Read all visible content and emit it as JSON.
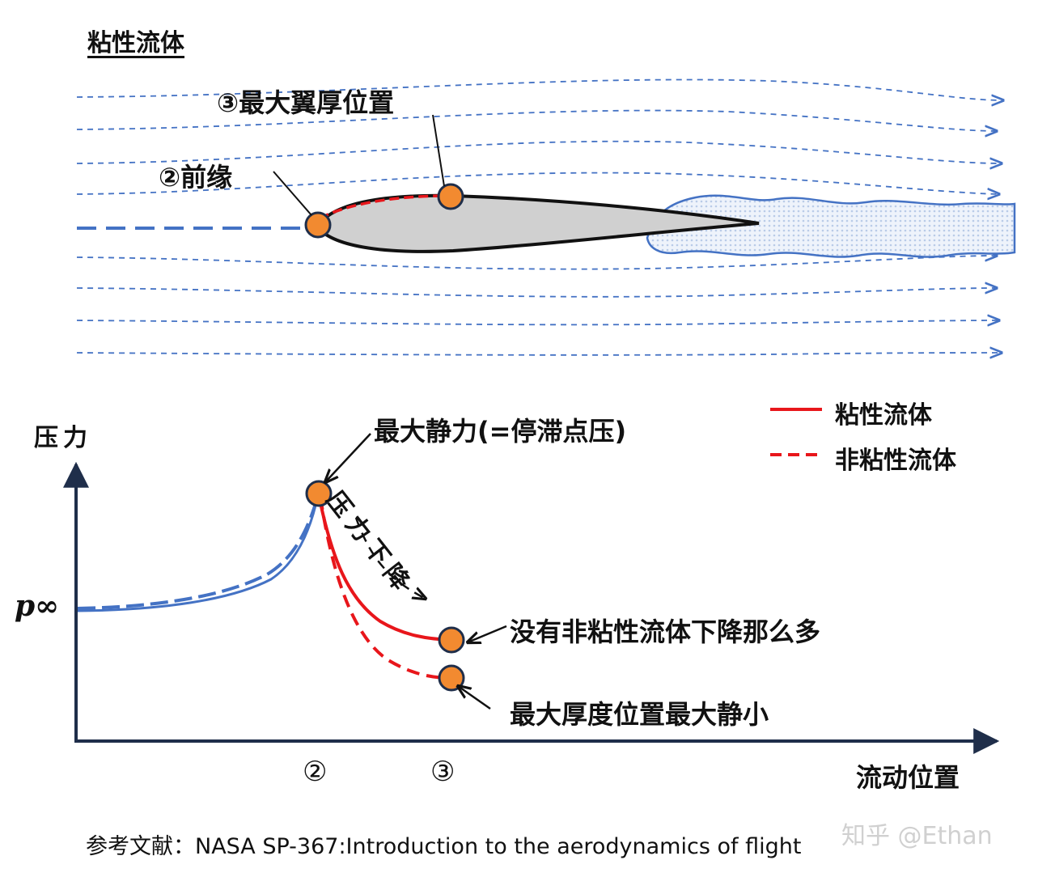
{
  "top_title": "粘性流体",
  "labels": {
    "max_thickness": "③最大翼厚位置",
    "leading_edge": "②前缘",
    "y_axis": "压力",
    "p_inf": "p∞",
    "stagnation": "最大静力(=停滞点压)",
    "pressure_drop": "压力下降",
    "viscous_note": "没有非粘性流体下降那么多",
    "min_note": "最大厚度位置最大静小",
    "x_axis": "流动位置",
    "x_tick_2": "②",
    "x_tick_3": "③"
  },
  "legend": [
    {
      "label": "粘性流体",
      "style": "solid",
      "color": "#e8161b"
    },
    {
      "label": "非粘性流体",
      "style": "dashed",
      "color": "#e8161b"
    }
  ],
  "reference": "参考文献：NASA SP-367:Introduction to the aerodynamics of flight",
  "watermark": "知乎 @Ethan",
  "colors": {
    "streamline": "#4472c4",
    "airfoil_fill": "#d0d0d0",
    "airfoil_stroke": "#111111",
    "marker_fill": "#f28a30",
    "marker_stroke": "#1f2e4a",
    "viscous_red": "#e8161b",
    "axis": "#1f2e4a"
  }
}
